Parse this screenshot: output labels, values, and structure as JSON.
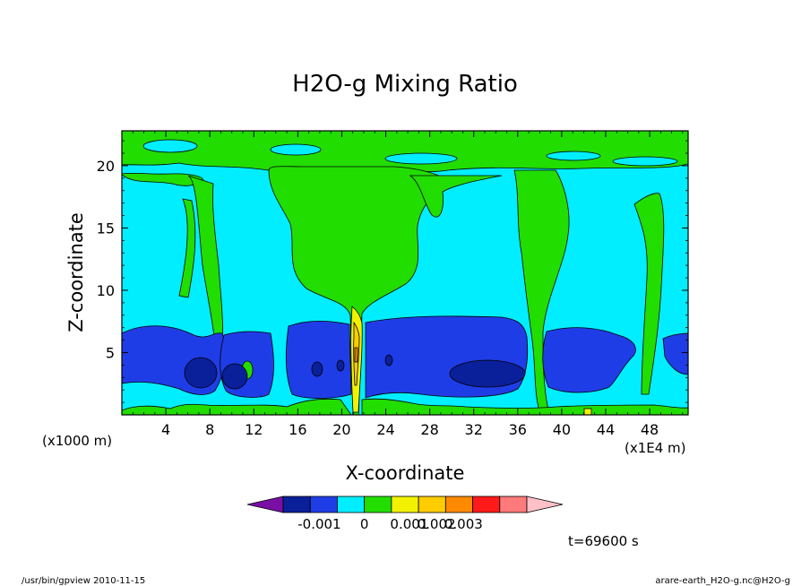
{
  "chart_data": {
    "type": "heatmap",
    "title": "H2O-g Mixing Ratio",
    "xlabel": "X-coordinate",
    "ylabel": "Z-coordinate",
    "x_unit_left": "(x1000 m)",
    "x_unit_right": "(x1E4 m)",
    "xlim": [
      0,
      51.5
    ],
    "ylim": [
      0,
      22.8
    ],
    "x_ticks": [
      4,
      8,
      12,
      16,
      20,
      24,
      28,
      32,
      36,
      40,
      44,
      48
    ],
    "y_ticks": [
      5,
      10,
      15,
      20
    ],
    "colorbar": {
      "levels": [
        "-0.001",
        "0",
        "0.001",
        "0.002",
        "0.003"
      ],
      "colors": [
        "#7a0fa6",
        "#0a1f9a",
        "#1f3de6",
        "#00eeff",
        "#22dd00",
        "#f2f200",
        "#ffcc00",
        "#ff8a00",
        "#ff1a1a",
        "#ff7a7a",
        "#ffc0c8"
      ]
    },
    "regions": [
      {
        "name": "background",
        "level": "0 to 0.0005",
        "color": "#00eeff"
      },
      {
        "name": "upper-band",
        "level": "0.0005 to 0.001",
        "color": "#22dd00",
        "z_range": [
          18,
          22.8
        ]
      },
      {
        "name": "central-plume",
        "level": "0.0005 to 0.001",
        "color": "#22dd00",
        "x_range": [
          15,
          27
        ],
        "z_range": [
          0,
          20
        ]
      },
      {
        "name": "low-band",
        "level": "-0.001 to -0.0005",
        "color": "#1f3de6",
        "z_range": [
          1.5,
          7
        ]
      },
      {
        "name": "low-core-1",
        "level": "< -0.001",
        "color": "#0a1f9a",
        "x_center": 6.5,
        "z_center": 3.5
      },
      {
        "name": "low-core-2",
        "level": "< -0.001",
        "color": "#0a1f9a",
        "x_center": 10,
        "z_center": 3.2
      },
      {
        "name": "low-core-3",
        "level": "< -0.001",
        "color": "#0a1f9a",
        "x_center": 31.5,
        "z_center": 3.5
      }
    ],
    "time_label": "t=69600 s"
  },
  "footer": {
    "left": "/usr/bin/gpview  2010-11-15",
    "right": "arare-earth_H2O-g.nc@H2O-g"
  }
}
